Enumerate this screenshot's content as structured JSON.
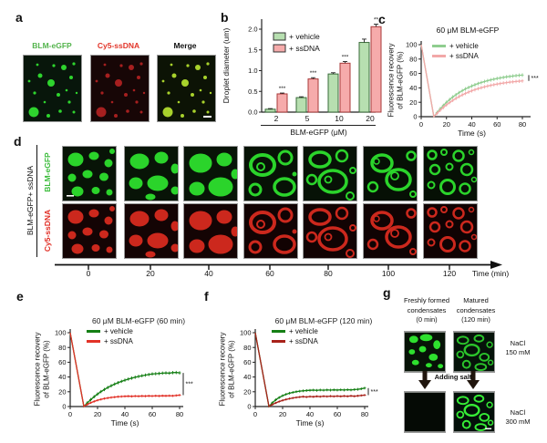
{
  "colors": {
    "gfp_label_green": "#54b44d",
    "cy5_label_red": "#e23529",
    "merge_label": "#111111",
    "d_row_green": "#3cbc3c",
    "d_row_red": "#e02a20"
  },
  "panel_a": {
    "label": "a",
    "channel_labels": [
      "BLM-eGFP",
      "Cy5-ssDNA",
      "Merge"
    ]
  },
  "panel_b": {
    "label": "b"
  },
  "panel_c": {
    "label": "c"
  },
  "panel_d": {
    "label": "d",
    "group_label": "BLM-eGFP+ ssDNA",
    "row_labels": [
      "BLM-eGFP",
      "Cy5-ssDNA"
    ],
    "timepoints": [
      "0",
      "20",
      "40",
      "60",
      "80",
      "100",
      "120"
    ],
    "axis_label": "Time (min)"
  },
  "panel_e": {
    "label": "e"
  },
  "panel_f": {
    "label": "f"
  },
  "panel_g": {
    "label": "g",
    "columns": [
      {
        "line1": "Freshly formed",
        "line2": "condensates",
        "line3": "(0 min)"
      },
      {
        "line1": "Matured",
        "line2": "condensates",
        "line3": "(120 min)"
      }
    ],
    "salt_labels": [
      {
        "line1": "NaCl",
        "line2": "150 mM"
      },
      {
        "line1": "NaCl",
        "line2": "300 mM"
      }
    ],
    "arrow_label": "Adding salt"
  },
  "chart_data": [
    {
      "id": "b",
      "type": "bar",
      "categories": [
        "2",
        "5",
        "10",
        "20"
      ],
      "series": [
        {
          "name": "+ vehicle",
          "values": [
            0.07,
            0.35,
            0.92,
            1.68
          ],
          "errors": [
            0.015,
            0.02,
            0.03,
            0.08
          ],
          "fill": "#b7dfb0",
          "stroke": "#3a6b3a"
        },
        {
          "name": "+ ssDNA",
          "values": [
            0.44,
            0.8,
            1.18,
            2.06
          ],
          "errors": [
            0.02,
            0.03,
            0.04,
            0.06
          ],
          "fill": "#f6abab",
          "stroke": "#a83a3a"
        }
      ],
      "significance": [
        "***",
        "***",
        "***",
        "**"
      ],
      "xlabel": "BLM-eGFP (μM)",
      "ylabel": "Droplet diameter (um)",
      "ylim": [
        0,
        2.2
      ],
      "yticks": [
        0.0,
        0.5,
        1.0,
        1.5,
        2.0
      ],
      "legend_position": "top-left"
    },
    {
      "id": "c",
      "type": "line",
      "title": "60 μM BLM-eGFP",
      "xlabel": "Time (s)",
      "ylabel1": "Fluorescence recovery",
      "ylabel2": "of BLM-eGFP (%)",
      "xlim": [
        0,
        80
      ],
      "ylim": [
        0,
        100
      ],
      "xticks": [
        0,
        20,
        40,
        60,
        80
      ],
      "yticks": [
        0,
        20,
        40,
        60,
        80,
        100
      ],
      "significance": "***",
      "x": [
        0,
        10,
        12.5,
        15,
        17.5,
        20,
        22.5,
        25,
        27.5,
        30,
        32.5,
        35,
        37.5,
        40,
        42.5,
        45,
        47.5,
        50,
        52.5,
        55,
        57.5,
        60,
        62.5,
        65,
        67.5,
        70,
        72.5,
        75,
        77.5,
        80
      ],
      "series": [
        {
          "name": "+ vehicle",
          "color": "#8fcd8f",
          "err": 2.5,
          "y": [
            100,
            0,
            5.7,
            10.9,
            15.6,
            19.9,
            23.8,
            27.4,
            30.5,
            33.4,
            36.1,
            38.5,
            40.6,
            42.6,
            44.3,
            46.0,
            47.4,
            48.8,
            50.0,
            51.1,
            52.1,
            53.0,
            53.8,
            54.6,
            55.3,
            55.9,
            56.4,
            57.0,
            57.4,
            57.8
          ]
        },
        {
          "name": "+ ssDNA",
          "color": "#f2a8a8",
          "err": 2.5,
          "y": [
            100,
            0,
            4.6,
            8.9,
            12.8,
            16.4,
            19.7,
            22.7,
            25.4,
            27.9,
            30.2,
            32.3,
            34.2,
            35.9,
            37.5,
            38.9,
            40.2,
            41.4,
            42.5,
            43.5,
            44.4,
            45.2,
            46.0,
            46.7,
            47.3,
            47.9,
            48.4,
            48.9,
            49.3,
            49.7
          ]
        }
      ]
    },
    {
      "id": "e",
      "type": "line",
      "title": "60 μM BLM-eGFP (60 min)",
      "xlabel": "Time (s)",
      "ylabel1": "Fluorescence recovery",
      "ylabel2": "of BLM-eGFP (%)",
      "xlim": [
        0,
        80
      ],
      "ylim": [
        0,
        100
      ],
      "xticks": [
        0,
        20,
        40,
        60,
        80
      ],
      "yticks": [
        0,
        20,
        40,
        60,
        80,
        100
      ],
      "significance": "***",
      "x": [
        0,
        10,
        12.5,
        15,
        17.5,
        20,
        22.5,
        25,
        27.5,
        30,
        32.5,
        35,
        37.5,
        40,
        42.5,
        45,
        47.5,
        50,
        52.5,
        55,
        57.5,
        60,
        62.5,
        65,
        67.5,
        70,
        72.5,
        75,
        77.5,
        80
      ],
      "series": [
        {
          "name": "+ vehicle",
          "color": "#157f15",
          "err": 2.2,
          "y": [
            100,
            0,
            4.9,
            9.3,
            13.3,
            16.9,
            20.2,
            23.1,
            25.8,
            28.2,
            30.4,
            32.3,
            34.1,
            35.7,
            37.2,
            38.5,
            39.7,
            40.8,
            41.7,
            42.6,
            43.4,
            44.1,
            44.4,
            44.8,
            45.2,
            45.5,
            45.2,
            45.9,
            46.1,
            45.6
          ]
        },
        {
          "name": "+ ssDNA",
          "color": "#e23228",
          "err": 1.6,
          "y": [
            100,
            0,
            2.8,
            5.1,
            6.9,
            8.5,
            9.7,
            10.8,
            11.6,
            12.3,
            12.8,
            13.3,
            13.6,
            13.9,
            14.1,
            13.8,
            14.2,
            14.0,
            14.3,
            14.1,
            14.4,
            14.2,
            14.5,
            14.3,
            14.6,
            14.4,
            14.7,
            14.5,
            15.0,
            15.5
          ]
        }
      ]
    },
    {
      "id": "f",
      "type": "line",
      "title": "60 μM BLM-eGFP (120 min)",
      "xlabel": "Time (s)",
      "ylabel1": "Fluorescence recovery",
      "ylabel2": "of BLM-eGFP (%)",
      "xlim": [
        0,
        80
      ],
      "ylim": [
        0,
        100
      ],
      "xticks": [
        0,
        20,
        40,
        60,
        80
      ],
      "yticks": [
        0,
        20,
        40,
        60,
        80,
        100
      ],
      "significance": "***",
      "x": [
        0,
        10,
        12.5,
        15,
        17.5,
        20,
        22.5,
        25,
        27.5,
        30,
        32.5,
        35,
        37.5,
        40,
        42.5,
        45,
        47.5,
        50,
        52.5,
        55,
        57.5,
        60,
        62.5,
        65,
        67.5,
        70,
        72.5,
        75,
        77.5,
        80
      ],
      "series": [
        {
          "name": "+ vehicle",
          "color": "#157f15",
          "err": 1.8,
          "y": [
            100,
            0,
            5.1,
            9.1,
            12.2,
            14.7,
            16.6,
            18.1,
            19.2,
            20.1,
            20.8,
            21.3,
            21.7,
            22.0,
            22.3,
            21.9,
            22.4,
            22.1,
            22.5,
            22.2,
            22.6,
            22.3,
            22.7,
            22.4,
            22.8,
            22.5,
            23.0,
            23.3,
            24.0,
            25.0
          ]
        },
        {
          "name": "+ ssDNA",
          "color": "#a8221a",
          "err": 1.5,
          "y": [
            100,
            0,
            2.7,
            4.9,
            6.8,
            8.3,
            9.6,
            10.7,
            11.6,
            12.3,
            12.9,
            13.4,
            12.9,
            13.6,
            13.2,
            13.8,
            13.4,
            14.0,
            13.6,
            14.1,
            13.7,
            14.2,
            13.8,
            14.3,
            13.9,
            14.4,
            14.0,
            14.5,
            15.0,
            15.5
          ]
        }
      ]
    }
  ]
}
